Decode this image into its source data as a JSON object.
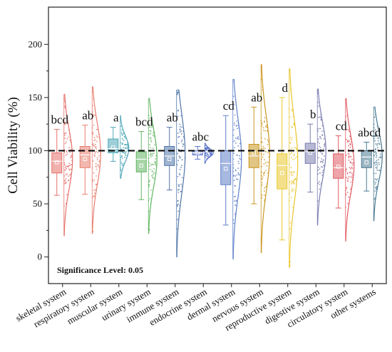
{
  "chart_data": {
    "type": "box-violin",
    "ylabel": "Cell Viability (%)",
    "ylim": [
      -15,
      225
    ],
    "yticks": [
      0,
      50,
      100,
      150,
      200
    ],
    "reference_line": 100,
    "note": "Significance Level: 0.05",
    "categories": [
      {
        "name": "skeletal system",
        "sig": "bcd",
        "color": "#e5706a",
        "min": 58,
        "q1": 79,
        "median": 90,
        "q3": 98,
        "max": 120,
        "mean": 89,
        "kde_min": 20,
        "kde_max": 153,
        "peak": 92
      },
      {
        "name": "respiratory system",
        "sig": "ab",
        "color": "#e87d6e",
        "min": 59,
        "q1": 84,
        "median": 96,
        "q3": 104,
        "max": 124,
        "mean": 92,
        "kde_min": 22,
        "kde_max": 160,
        "peak": 97
      },
      {
        "name": "muscular system",
        "sig": "a",
        "color": "#4fa8b8",
        "min": 90,
        "q1": 98,
        "median": 102,
        "q3": 111,
        "max": 122,
        "mean": 103,
        "kde_min": 74,
        "kde_max": 133,
        "peak": 102
      },
      {
        "name": "urinary system",
        "sig": "bcd",
        "color": "#62b562",
        "min": 54,
        "q1": 80,
        "median": 92,
        "q3": 99,
        "max": 118,
        "mean": 86,
        "kde_min": 22,
        "kde_max": 149,
        "peak": 93
      },
      {
        "name": "immune system",
        "sig": "ab",
        "color": "#4f75a8",
        "min": 63,
        "q1": 86,
        "median": 95,
        "q3": 104,
        "max": 122,
        "mean": 92,
        "kde_min": 0,
        "kde_max": 157,
        "peak": 97
      },
      {
        "name": "endocrine system",
        "sig": "abc",
        "color": "#5b73c9",
        "min": 92,
        "q1": 96,
        "median": 98,
        "q3": 100,
        "max": 104,
        "mean": 98,
        "kde_min": 88,
        "kde_max": 107,
        "peak": 98
      },
      {
        "name": "dermal system",
        "sig": "cd",
        "color": "#5f80c8",
        "min": 30,
        "q1": 68,
        "median": 88,
        "q3": 100,
        "max": 133,
        "mean": 83,
        "kde_min": -2,
        "kde_max": 167,
        "peak": 93
      },
      {
        "name": "nervous system",
        "sig": "ab",
        "color": "#c9961e",
        "min": 50,
        "q1": 84,
        "median": 95,
        "q3": 106,
        "max": 141,
        "mean": 98,
        "kde_min": 4,
        "kde_max": 181,
        "peak": 97
      },
      {
        "name": "reproductive system",
        "sig": "d",
        "color": "#e9c62c",
        "min": 16,
        "q1": 64,
        "median": 86,
        "q3": 97,
        "max": 150,
        "mean": 79,
        "kde_min": -10,
        "kde_max": 177,
        "peak": 90
      },
      {
        "name": "digestive system",
        "sig": "b",
        "color": "#7b7db0",
        "min": 61,
        "q1": 88,
        "median": 99,
        "q3": 107,
        "max": 125,
        "mean": 98,
        "kde_min": 30,
        "kde_max": 158,
        "peak": 100
      },
      {
        "name": "circulatory system",
        "sig": "cd",
        "color": "#e05a62",
        "min": 46,
        "q1": 74,
        "median": 84,
        "q3": 97,
        "max": 114,
        "mean": 85,
        "kde_min": 15,
        "kde_max": 149,
        "peak": 87
      },
      {
        "name": "other systems",
        "sig": "abcd",
        "color": "#4a7a92",
        "min": 62,
        "q1": 84,
        "median": 94,
        "q3": 100,
        "max": 108,
        "mean": 89,
        "kde_min": 34,
        "kde_max": 141,
        "peak": 95
      }
    ]
  }
}
